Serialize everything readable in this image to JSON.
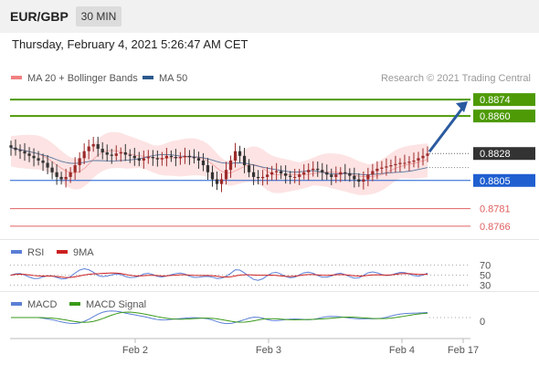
{
  "header": {
    "symbol": "EUR/GBP",
    "timeframe": "30 MIN",
    "datetime": "Thursday, February 4, 2021 5:26:47 AM CET"
  },
  "legend": {
    "ma20": "MA 20 + Bollinger Bands",
    "ma50": "MA 50",
    "credit": "Research © 2021 Trading Central",
    "rsi": "RSI",
    "rsi_ma": "9MA",
    "macd": "MACD",
    "macd_signal": "MACD Signal"
  },
  "colors": {
    "ma20": "#f08080",
    "ma50": "#2c5a8c",
    "band_fill": "#fde0e0",
    "green_level": "#4e9a06",
    "blue_level": "#1f5fd0",
    "red_level": "#e06060",
    "current_price_bg": "#333333",
    "candle_up": "#9c2a2a",
    "candle_down": "#333333",
    "rsi_line": "#5b7fd6",
    "rsi_ma_line": "#cc2020",
    "macd_line": "#5b7fd6",
    "macd_signal_line": "#3a9a1a",
    "arrow": "#2a5aa0"
  },
  "chart_data": [
    {
      "type": "candlestick",
      "ylim": [
        0.8755,
        0.8885
      ],
      "x_ticks": [
        "Feb 2",
        "Feb 3",
        "Feb 4",
        "Feb 17"
      ],
      "levels": [
        {
          "value": 0.8874,
          "label": "0.8874",
          "kind": "resistance"
        },
        {
          "value": 0.886,
          "label": "0.8860",
          "kind": "resistance"
        },
        {
          "value": 0.8828,
          "label": "0.8828",
          "kind": "current"
        },
        {
          "value": 0.8805,
          "label": "0.8805",
          "kind": "pivot"
        },
        {
          "value": 0.8781,
          "label": "0.8781",
          "kind": "support"
        },
        {
          "value": 0.8766,
          "label": "0.8766",
          "kind": "support"
        }
      ],
      "close_series": [
        0.8833,
        0.8831,
        0.883,
        0.8828,
        0.8826,
        0.8824,
        0.8822,
        0.882,
        0.8816,
        0.8812,
        0.8808,
        0.8806,
        0.8808,
        0.8812,
        0.8818,
        0.8824,
        0.883,
        0.8834,
        0.8836,
        0.8832,
        0.8829,
        0.8827,
        0.8826,
        0.8828,
        0.8829,
        0.8827,
        0.8826,
        0.8824,
        0.8822,
        0.8824,
        0.8825,
        0.8824,
        0.8823,
        0.8824,
        0.8826,
        0.8825,
        0.8824,
        0.8825,
        0.8826,
        0.8825,
        0.8824,
        0.8822,
        0.8818,
        0.8812,
        0.8806,
        0.8802,
        0.8806,
        0.8814,
        0.8822,
        0.883,
        0.8826,
        0.8818,
        0.8812,
        0.8808,
        0.8807,
        0.8808,
        0.881,
        0.8812,
        0.8813,
        0.8811,
        0.8809,
        0.8808,
        0.8808,
        0.881,
        0.8812,
        0.8814,
        0.8815,
        0.8814,
        0.8812,
        0.881,
        0.8808,
        0.881,
        0.8812,
        0.8811,
        0.8809,
        0.8806,
        0.8804,
        0.8806,
        0.881,
        0.8813,
        0.8815,
        0.8816,
        0.8817,
        0.8818,
        0.8819,
        0.882,
        0.882,
        0.8821,
        0.8822,
        0.8824,
        0.8826,
        0.8828
      ],
      "bb_upper": 0.8843,
      "bb_lower": 0.88
    },
    {
      "type": "line",
      "name": "RSI",
      "levels": [
        70,
        50,
        30
      ],
      "ylim": [
        20,
        80
      ]
    },
    {
      "type": "line",
      "name": "MACD",
      "levels": [
        0
      ]
    }
  ]
}
